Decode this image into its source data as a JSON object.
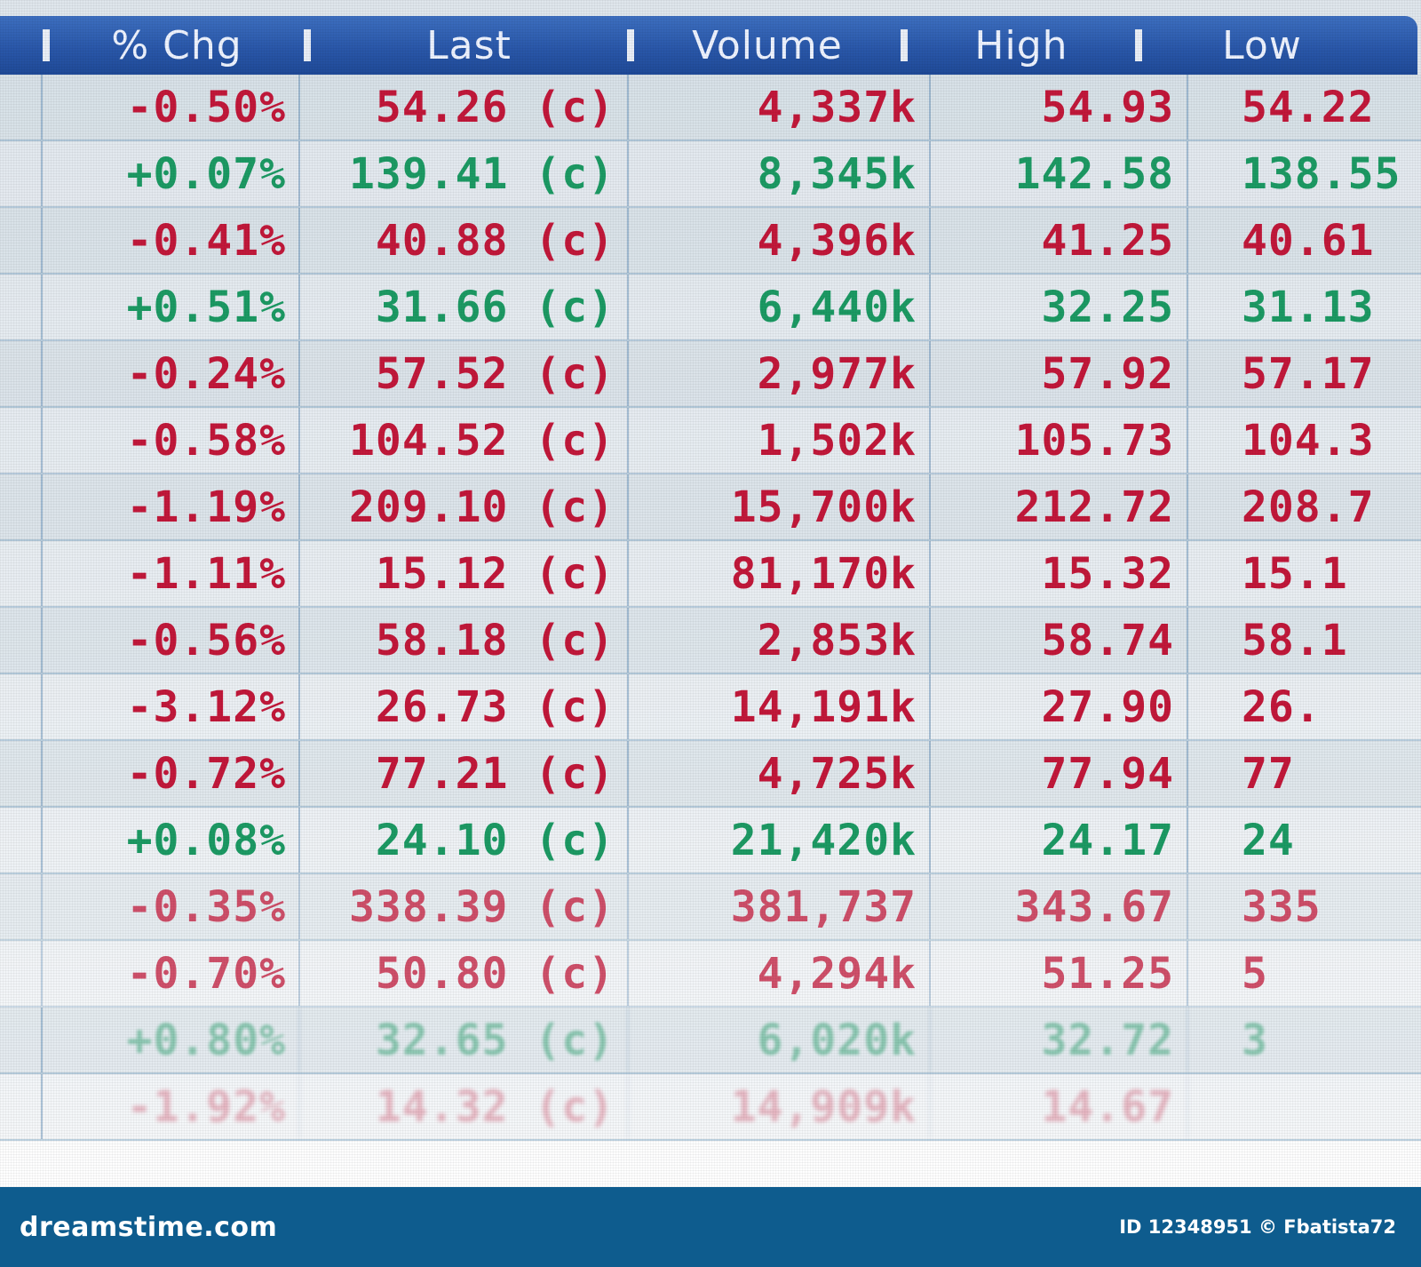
{
  "header": {
    "columns": [
      "% Chg",
      "Last",
      "Volume",
      "High",
      "Low"
    ]
  },
  "rows": [
    {
      "chg": "-0.50%",
      "last": "54.26 (c)",
      "volume": "4,337k",
      "high": "54.93",
      "low": "54.22",
      "trend": "neg"
    },
    {
      "chg": "+0.07%",
      "last": "139.41 (c)",
      "volume": "8,345k",
      "high": "142.58",
      "low": "138.55",
      "trend": "pos"
    },
    {
      "chg": "-0.41%",
      "last": "40.88 (c)",
      "volume": "4,396k",
      "high": "41.25",
      "low": "40.61",
      "trend": "neg"
    },
    {
      "chg": "+0.51%",
      "last": "31.66 (c)",
      "volume": "6,440k",
      "high": "32.25",
      "low": "31.13",
      "trend": "pos"
    },
    {
      "chg": "-0.24%",
      "last": "57.52 (c)",
      "volume": "2,977k",
      "high": "57.92",
      "low": "57.17",
      "trend": "neg"
    },
    {
      "chg": "-0.58%",
      "last": "104.52 (c)",
      "volume": "1,502k",
      "high": "105.73",
      "low": "104.3",
      "trend": "neg"
    },
    {
      "chg": "-1.19%",
      "last": "209.10 (c)",
      "volume": "15,700k",
      "high": "212.72",
      "low": "208.7",
      "trend": "neg"
    },
    {
      "chg": "-1.11%",
      "last": "15.12 (c)",
      "volume": "81,170k",
      "high": "15.32",
      "low": "15.1",
      "trend": "neg"
    },
    {
      "chg": "-0.56%",
      "last": "58.18 (c)",
      "volume": "2,853k",
      "high": "58.74",
      "low": "58.1",
      "trend": "neg"
    },
    {
      "chg": "-3.12%",
      "last": "26.73 (c)",
      "volume": "14,191k",
      "high": "27.90",
      "low": "26.",
      "trend": "neg"
    },
    {
      "chg": "-0.72%",
      "last": "77.21 (c)",
      "volume": "4,725k",
      "high": "77.94",
      "low": "77",
      "trend": "neg"
    },
    {
      "chg": "+0.08%",
      "last": "24.10 (c)",
      "volume": "21,420k",
      "high": "24.17",
      "low": "24",
      "trend": "pos"
    },
    {
      "chg": "-0.35%",
      "last": "338.39 (c)",
      "volume": "381,737",
      "high": "343.67",
      "low": "335",
      "trend": "neg"
    },
    {
      "chg": "-0.70%",
      "last": "50.80 (c)",
      "volume": "4,294k",
      "high": "51.25",
      "low": "5",
      "trend": "neg"
    },
    {
      "chg": "+0.80%",
      "last": "32.65 (c)",
      "volume": "6,020k",
      "high": "32.72",
      "low": "3",
      "trend": "pos"
    },
    {
      "chg": "-1.92%",
      "last": "14.32 (c)",
      "volume": "14,909k",
      "high": "14.67",
      "low": "",
      "trend": "neg"
    }
  ],
  "footer": {
    "brand": "dreamstime.com",
    "credit": "ID 12348951 © Fbatista72"
  },
  "colors": {
    "negative": "#c2183a",
    "positive": "#1c9a64",
    "header": "#2a58aa",
    "footer": "#0e5c8e"
  }
}
